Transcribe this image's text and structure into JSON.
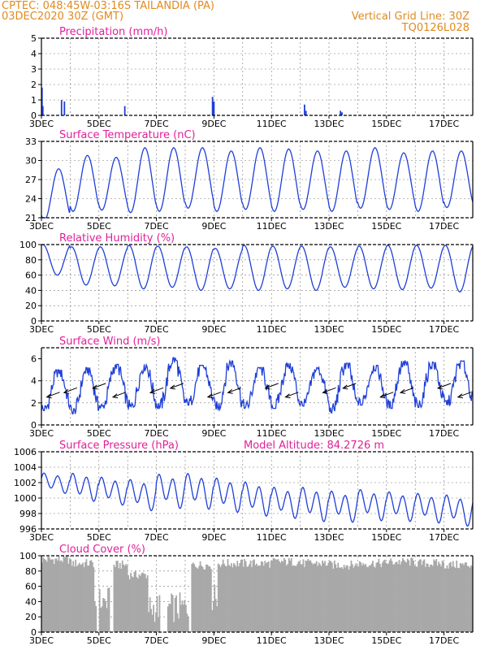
{
  "header": {
    "line1": "CPTEC:   048:45W-03:16S   TAILANDIA (PA)",
    "line2": "03DEC2020 30Z (GMT)",
    "right1": "Vertical Grid Line: 30Z",
    "right2": "TQ0126L028"
  },
  "colors": {
    "header": "#e08a20",
    "title": "#e0209a",
    "line": "#1f3fd8",
    "cloud": "#a8a8a8",
    "frame": "#000000"
  },
  "chart_data": [
    {
      "type": "bar",
      "title": "Precipitation (mm/h)",
      "ylim": [
        0,
        5
      ],
      "yticks": [
        "0",
        "1",
        "2",
        "3",
        "4",
        "5"
      ],
      "xticks": [
        "3DEC",
        "5DEC",
        "7DEC",
        "9DEC",
        "11DEC",
        "13DEC",
        "15DEC",
        "17DEC"
      ],
      "x_unit": "day offset from 3DEC",
      "points": [
        [
          0.02,
          1.8
        ],
        [
          0.05,
          0.6
        ],
        [
          0.7,
          1.0
        ],
        [
          0.8,
          0.9
        ],
        [
          2.9,
          0.6
        ],
        [
          5.95,
          1.2
        ],
        [
          6.0,
          0.9
        ],
        [
          9.15,
          0.7
        ],
        [
          9.2,
          0.3
        ],
        [
          10.4,
          0.3
        ],
        [
          10.45,
          0.2
        ]
      ]
    },
    {
      "type": "line",
      "title": "Surface Temperature (nC)",
      "ylim": [
        21,
        33
      ],
      "yticks": [
        "21",
        "24",
        "27",
        "30",
        "33"
      ],
      "xticks": [
        "3DEC",
        "5DEC",
        "7DEC",
        "9DEC",
        "11DEC",
        "13DEC",
        "15DEC",
        "17DEC"
      ],
      "daily_max": [
        28.7,
        30.8,
        30.5,
        32.0,
        32.0,
        32.0,
        31.5,
        32.0,
        31.8,
        31.5,
        31.5,
        32.0,
        31.2,
        31.5,
        31.5
      ],
      "daily_min": [
        20.6,
        22.0,
        22.2,
        21.8,
        22.0,
        22.5,
        22.0,
        22.3,
        22.0,
        22.3,
        22.0,
        22.5,
        22.3,
        22.0,
        22.6
      ]
    },
    {
      "type": "line",
      "title": "Relative Humidity (%)",
      "ylim": [
        0,
        100
      ],
      "yticks": [
        "0",
        "20",
        "40",
        "60",
        "80",
        "100"
      ],
      "xticks": [
        "3DEC",
        "5DEC",
        "7DEC",
        "9DEC",
        "11DEC",
        "13DEC",
        "15DEC",
        "17DEC"
      ],
      "daily_max": [
        100,
        97,
        97,
        99,
        98,
        97,
        95,
        99,
        98,
        98,
        97,
        98,
        99,
        99,
        99
      ],
      "daily_min": [
        60,
        47,
        46,
        42,
        44,
        40,
        42,
        40,
        42,
        40,
        44,
        42,
        41,
        43,
        38
      ]
    },
    {
      "type": "line",
      "title": "Surface Wind (m/s)",
      "ylim": [
        0,
        7
      ],
      "yticks": [
        "0",
        "2",
        "4",
        "6"
      ],
      "xticks": [
        "3DEC",
        "5DEC",
        "7DEC",
        "9DEC",
        "11DEC",
        "13DEC",
        "15DEC",
        "17DEC"
      ],
      "daily_max": [
        5.0,
        5.2,
        5.5,
        5.5,
        6.1,
        5.4,
        5.8,
        5.2,
        5.6,
        5.2,
        5.6,
        5.4,
        5.8,
        5.7,
        5.8
      ],
      "daily_min": [
        1.3,
        1.0,
        1.5,
        1.5,
        1.5,
        1.8,
        1.4,
        1.5,
        1.5,
        1.7,
        1.1,
        1.8,
        1.5,
        1.6,
        1.8
      ],
      "arrow_days": [
        0.3,
        0.9,
        1.9,
        2.6,
        3.9,
        4.6,
        5.9,
        6.6,
        7.9,
        8.6,
        9.9,
        10.6,
        11.9,
        12.6,
        13.9,
        14.6
      ]
    },
    {
      "type": "line",
      "title": "Surface Pressure (hPa)",
      "annotation": "Model Altitude: 84.2726 m",
      "ylim": [
        996,
        1006
      ],
      "yticks": [
        "996",
        "998",
        "1000",
        "1002",
        "1004",
        "1006"
      ],
      "xticks": [
        "3DEC",
        "5DEC",
        "7DEC",
        "9DEC",
        "11DEC",
        "13DEC",
        "15DEC",
        "17DEC"
      ],
      "base": [
        1002.0,
        1001.5,
        1001.0,
        1000.5,
        1001.0,
        1001.0,
        1000.5,
        1000.0,
        999.5,
        999.3,
        999.0,
        999.2,
        999.0,
        998.8,
        998.5
      ],
      "amplitude": [
        1.3,
        1.8,
        1.8,
        2.0,
        2.2,
        2.3,
        2.2,
        2.2,
        2.0,
        2.2,
        2.0,
        2.0,
        1.9,
        1.9,
        2.0
      ]
    },
    {
      "type": "bar",
      "title": "Cloud Cover (%)",
      "ylim": [
        0,
        100
      ],
      "yticks": [
        "0",
        "20",
        "40",
        "60",
        "80",
        "100"
      ],
      "xticks": [
        "3DEC",
        "5DEC",
        "7DEC",
        "9DEC",
        "11DEC",
        "13DEC",
        "15DEC",
        "17DEC"
      ],
      "daily_mean": [
        95,
        90,
        88,
        75,
        89,
        88,
        90,
        90,
        92,
        90,
        88,
        90,
        92,
        90,
        88
      ],
      "gaps": [
        [
          1.9,
          2.0
        ],
        [
          2.35,
          2.5
        ],
        [
          4.1,
          4.35
        ],
        [
          5.1,
          5.2
        ]
      ],
      "dips": [
        [
          1.8,
          2.4,
          20
        ],
        [
          3.7,
          5.2,
          12
        ],
        [
          5.9,
          6.1,
          25
        ]
      ]
    }
  ]
}
